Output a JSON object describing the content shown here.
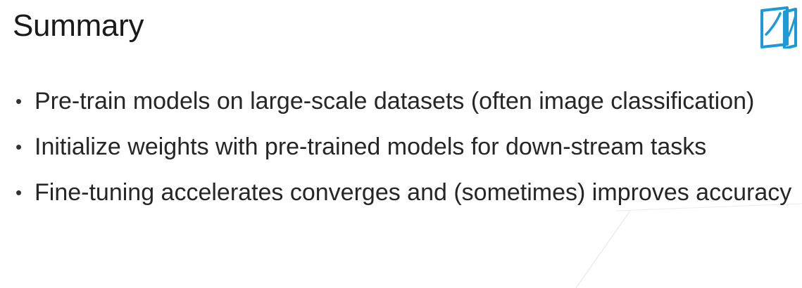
{
  "slide": {
    "title": "Summary",
    "bullet_glyph": "•",
    "bullets": [
      "Pre-train models on large-scale datasets (often image classification)",
      "Initialize weights with pre-trained models for down-stream tasks",
      "Fine-tuning accelerates converges and (sometimes) improves accuracy"
    ]
  },
  "logo": {
    "icon": "book-logo-icon",
    "color": "#1c9ad6"
  }
}
